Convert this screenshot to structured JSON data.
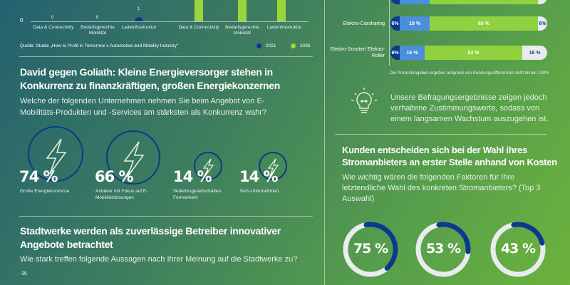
{
  "chart_top_left": {
    "zero_label": "0",
    "values_2021": [
      "0",
      "0",
      "1"
    ],
    "categories": [
      "Data & Connectivity",
      "Bedarfsgerechte Mobilität",
      "Ladeinfrastruktur"
    ],
    "source": "Quelle: Studie „How to Profit in Tomorrow´s Automotive and Mobility Industry\"",
    "legend": [
      {
        "label": "2021",
        "color": "#0b3a8c"
      },
      {
        "label": "2035",
        "color": "#9bd53c"
      }
    ]
  },
  "competition": {
    "title": "David gegen Goliath: Kleine Energieversorger stehen in Konkurrenz zu finanzkräftigen, großen Energiekonzernen",
    "question": "Welche der folgenden Unternehmen nehmen Sie beim Angebot von E-Mobilitäts-Produkten und -Services am stärksten als Konkurrenz wahr?",
    "items": [
      {
        "value": "74 %",
        "label": "Große Energiekonzerne"
      },
      {
        "value": "66 %",
        "label": "Anbieter mit Fokus auf E-Mobilitätslösungen"
      },
      {
        "value": "14 %",
        "label": "Verkehrsgesellschaften Fernverkehr"
      },
      {
        "value": "14 %",
        "label": "Tech-Unternehmen"
      }
    ]
  },
  "stadtwerke": {
    "title": "Stadtwerke werden als zuverlässige Betreiber innovativer Angebote betrachtet",
    "question": "Wie stark treffen folgende Aussagen nach Ihrer Meinung auf die Stadtwerke zu?",
    "axis_top": "35"
  },
  "mobility_bars": {
    "rows": [
      {
        "label": "",
        "segments": [
          6,
          19,
          69,
          6
        ],
        "texts": [
          "",
          "",
          "",
          ""
        ]
      },
      {
        "label": "Elektro-Carsharing",
        "segments": [
          6,
          19,
          69,
          6
        ],
        "texts": [
          "6%",
          "19 %",
          "69 %",
          "6%"
        ]
      },
      {
        "label": "Elektro-Scooter/ Elektro-Roller",
        "segments": [
          6,
          16,
          63,
          16
        ],
        "texts": [
          "6%",
          "16 %",
          "63 %",
          "16 %"
        ]
      }
    ],
    "colors": [
      "#0b3a8c",
      "#4a8fdc",
      "#8fd13f",
      "#e9ebf1"
    ],
    "footnote": "Die Prozentangaben ergeben aufgrund von Rundungsdifferenzen nicht immer 100%"
  },
  "insight": {
    "icon": "lightbulb-icon",
    "text": "Unsere Befragungsergebnisse zeigen jedoch verhaltene Zustimmungswerte, sodass von einem langsamen Wachstum auszugehen ist."
  },
  "costs": {
    "title": "Kunden entscheiden sich bei der Wahl ihres Stromanbieters an erster Stelle anhand von Kosten",
    "question": "Wie wichtig wären die folgenden Faktoren für Ihre letztendliche Wahl des konkreten Stromanbieters? (Top 3 Auswahl)",
    "donuts": [
      {
        "value": "75 %",
        "fraction": 0.75
      },
      {
        "value": "53 %",
        "fraction": 0.53
      },
      {
        "value": "43 %",
        "fraction": 0.43
      }
    ]
  }
}
